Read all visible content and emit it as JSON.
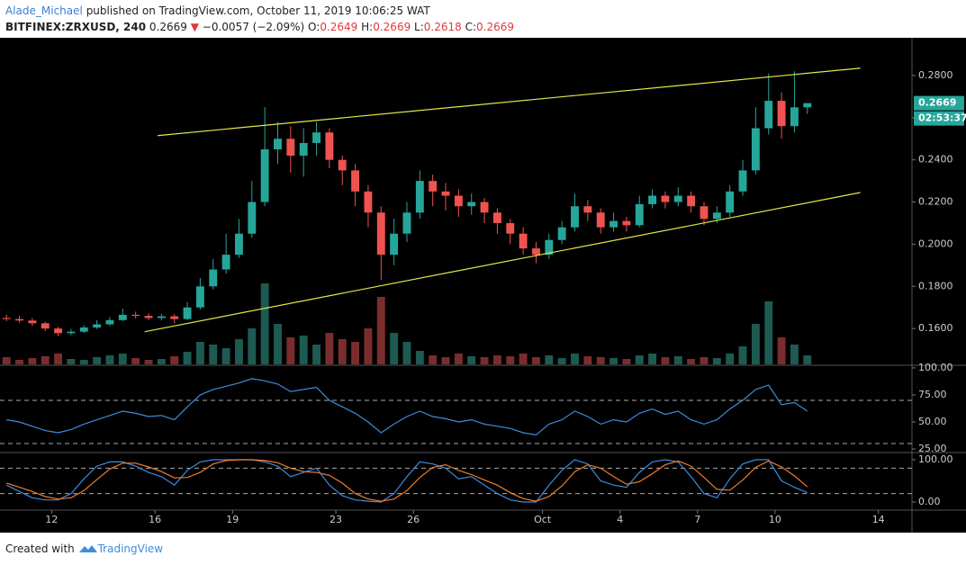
{
  "header": {
    "author": "Alade_Michael",
    "published": "published on TradingView.com, October 11, 2019 10:06:25 WAT",
    "symbol": "BITFINEX:ZRXUSD, 240",
    "last": "0.2669",
    "arrow": "▼",
    "change": "−0.0057 (−2.09%)",
    "ohlc": [
      {
        "label": "O:",
        "value": "0.2649"
      },
      {
        "label": "H:",
        "value": "0.2669"
      },
      {
        "label": "L:",
        "value": "0.2618"
      },
      {
        "label": "C:",
        "value": "0.2669"
      }
    ]
  },
  "footer": {
    "text": "Created with",
    "brand": "TradingView"
  },
  "chart_data": [
    {
      "type": "candlestick",
      "x": [
        10.25,
        10.75,
        11.25,
        11.75,
        12.25,
        12.75,
        13.25,
        13.75,
        14.25,
        14.75,
        15.25,
        15.75,
        16.25,
        16.75,
        17.25,
        17.75,
        18.25,
        18.75,
        19.25,
        19.75,
        20.25,
        20.75,
        21.25,
        21.75,
        22.25,
        22.75,
        23.25,
        23.75,
        24.25,
        24.75,
        25.25,
        25.75,
        26.25,
        26.75,
        27.25,
        27.75,
        28.25,
        28.75,
        29.25,
        29.75,
        30.25,
        30.75,
        31.25,
        31.75,
        32.25,
        32.75,
        33.25,
        33.75,
        34.25,
        34.75,
        35.25,
        35.75,
        36.25,
        36.75,
        37.25,
        37.75,
        38.25,
        38.75,
        39.25,
        39.75,
        40.25,
        40.75,
        41.25
      ],
      "open": [
        0.165,
        0.1645,
        0.1638,
        0.1625,
        0.16,
        0.1578,
        0.1585,
        0.1605,
        0.162,
        0.164,
        0.1665,
        0.166,
        0.165,
        0.1658,
        0.1645,
        0.17,
        0.18,
        0.188,
        0.195,
        0.205,
        0.22,
        0.245,
        0.25,
        0.242,
        0.248,
        0.253,
        0.24,
        0.235,
        0.225,
        0.215,
        0.195,
        0.205,
        0.215,
        0.23,
        0.225,
        0.223,
        0.218,
        0.22,
        0.215,
        0.21,
        0.205,
        0.198,
        0.195,
        0.202,
        0.208,
        0.218,
        0.215,
        0.208,
        0.211,
        0.209,
        0.219,
        0.223,
        0.22,
        0.223,
        0.218,
        0.212,
        0.215,
        0.225,
        0.235,
        0.255,
        0.268,
        0.256,
        0.2649
      ],
      "high": [
        0.1665,
        0.166,
        0.165,
        0.1632,
        0.1608,
        0.1598,
        0.1615,
        0.164,
        0.1655,
        0.1695,
        0.168,
        0.1672,
        0.167,
        0.1668,
        0.1725,
        0.184,
        0.193,
        0.205,
        0.212,
        0.23,
        0.265,
        0.258,
        0.256,
        0.255,
        0.258,
        0.255,
        0.242,
        0.238,
        0.228,
        0.218,
        0.212,
        0.22,
        0.235,
        0.233,
        0.229,
        0.226,
        0.224,
        0.222,
        0.217,
        0.212,
        0.208,
        0.201,
        0.205,
        0.211,
        0.224,
        0.221,
        0.217,
        0.215,
        0.213,
        0.223,
        0.226,
        0.225,
        0.227,
        0.225,
        0.22,
        0.218,
        0.228,
        0.24,
        0.265,
        0.281,
        0.272,
        0.282,
        0.2669
      ],
      "low": [
        0.1635,
        0.1628,
        0.1612,
        0.1588,
        0.1565,
        0.1568,
        0.1578,
        0.1598,
        0.1612,
        0.1635,
        0.1648,
        0.164,
        0.1638,
        0.1625,
        0.164,
        0.169,
        0.1785,
        0.186,
        0.1935,
        0.203,
        0.218,
        0.238,
        0.234,
        0.232,
        0.242,
        0.236,
        0.228,
        0.218,
        0.208,
        0.183,
        0.19,
        0.201,
        0.212,
        0.218,
        0.216,
        0.213,
        0.214,
        0.21,
        0.205,
        0.2,
        0.195,
        0.191,
        0.193,
        0.2,
        0.206,
        0.211,
        0.205,
        0.206,
        0.206,
        0.208,
        0.217,
        0.217,
        0.218,
        0.215,
        0.209,
        0.21,
        0.213,
        0.223,
        0.233,
        0.252,
        0.25,
        0.253,
        0.2618
      ],
      "close": [
        0.1645,
        0.1638,
        0.1625,
        0.16,
        0.1578,
        0.1585,
        0.1605,
        0.162,
        0.164,
        0.1665,
        0.166,
        0.165,
        0.1658,
        0.1645,
        0.17,
        0.18,
        0.188,
        0.195,
        0.205,
        0.22,
        0.245,
        0.25,
        0.242,
        0.248,
        0.253,
        0.24,
        0.235,
        0.225,
        0.215,
        0.195,
        0.205,
        0.215,
        0.23,
        0.225,
        0.223,
        0.218,
        0.22,
        0.215,
        0.21,
        0.205,
        0.198,
        0.195,
        0.202,
        0.208,
        0.218,
        0.215,
        0.208,
        0.211,
        0.209,
        0.219,
        0.223,
        0.22,
        0.223,
        0.218,
        0.212,
        0.215,
        0.225,
        0.235,
        0.255,
        0.268,
        0.256,
        0.2649,
        0.2669
      ],
      "volume": [
        8,
        5,
        7,
        9,
        12,
        6,
        5,
        8,
        10,
        12,
        7,
        5,
        6,
        9,
        14,
        25,
        22,
        18,
        28,
        40,
        90,
        45,
        30,
        32,
        22,
        35,
        28,
        25,
        40,
        75,
        35,
        25,
        15,
        10,
        8,
        12,
        9,
        8,
        10,
        9,
        12,
        8,
        10,
        7,
        12,
        9,
        8,
        7,
        6,
        10,
        12,
        8,
        9,
        6,
        8,
        7,
        12,
        20,
        45,
        70,
        30,
        22,
        10
      ],
      "up_color": "#26a69a",
      "down_color": "#ef5350",
      "up_volume_color": "#1d5b52",
      "down_volume_color": "#7b2d2d",
      "trendlines": [
        {
          "x": [
            16.1,
            43.3
          ],
          "y": [
            0.2515,
            0.2835
          ]
        },
        {
          "x": [
            15.6,
            43.3
          ],
          "y": [
            0.1585,
            0.2245
          ]
        }
      ],
      "trendline_color": "#e6e64a",
      "last_price": {
        "value": 0.2669,
        "label": "0.2669"
      },
      "countdown": "02:53:37",
      "xlim": [
        10,
        45.3
      ],
      "xticks": [
        12,
        16,
        19,
        23,
        26,
        {
          "value": 31,
          "label": "Oct"
        },
        {
          "value": 34,
          "label": "4"
        },
        {
          "value": 37,
          "label": "7"
        },
        {
          "value": 40,
          "label": "10"
        },
        {
          "value": 44,
          "label": "14"
        }
      ],
      "ylim": [
        0.143,
        0.2979
      ],
      "yticks": [
        {
          "value": 0.16,
          "label": "0.1600"
        },
        {
          "value": 0.18,
          "label": "0.1800"
        },
        {
          "value": 0.2,
          "label": "0.2000"
        },
        {
          "value": 0.22,
          "label": "0.2200"
        },
        {
          "value": 0.24,
          "label": "0.2400"
        },
        {
          "value": 0.26,
          "label": "0.2600"
        },
        {
          "value": 0.28,
          "label": "0.2800"
        }
      ]
    },
    {
      "type": "line",
      "series": [
        {
          "color": "#3d8be0",
          "values": [
            52,
            50,
            46,
            42,
            40,
            43,
            48,
            52,
            56,
            60,
            58,
            55,
            56,
            52,
            64,
            75,
            80,
            83,
            86,
            90,
            88,
            85,
            78,
            80,
            82,
            70,
            64,
            58,
            50,
            40,
            48,
            55,
            60,
            55,
            53,
            50,
            52,
            48,
            46,
            44,
            40,
            38,
            48,
            52,
            60,
            55,
            48,
            52,
            50,
            58,
            62,
            57,
            60,
            52,
            48,
            52,
            62,
            70,
            80,
            84,
            66,
            68,
            60
          ]
        }
      ],
      "bands": [
        30,
        70
      ],
      "ylim": [
        22.5,
        101.6
      ],
      "yticks": [
        {
          "value": 25,
          "label": "25.00"
        },
        {
          "value": 50,
          "label": "50.00"
        },
        {
          "value": 75,
          "label": "75.00"
        },
        {
          "value": 100,
          "label": "100.00"
        }
      ]
    },
    {
      "type": "line",
      "series": [
        {
          "color": "#3d8be0",
          "values": [
            40,
            25,
            10,
            5,
            5,
            20,
            55,
            85,
            95,
            95,
            85,
            70,
            60,
            40,
            75,
            95,
            100,
            100,
            100,
            100,
            95,
            85,
            60,
            70,
            80,
            40,
            15,
            5,
            2,
            0,
            20,
            60,
            95,
            90,
            80,
            55,
            60,
            40,
            20,
            5,
            0,
            0,
            40,
            75,
            100,
            90,
            50,
            40,
            35,
            70,
            95,
            100,
            95,
            60,
            20,
            10,
            55,
            90,
            100,
            100,
            50,
            35,
            22
          ]
        },
        {
          "color": "#f07c2a",
          "values": [
            45,
            35,
            25,
            13,
            7,
            10,
            27,
            53,
            78,
            92,
            92,
            83,
            72,
            57,
            58,
            70,
            90,
            98,
            100,
            100,
            98,
            93,
            80,
            72,
            70,
            63,
            45,
            20,
            7,
            2,
            7,
            27,
            58,
            82,
            88,
            75,
            65,
            52,
            40,
            22,
            8,
            2,
            13,
            38,
            72,
            88,
            80,
            60,
            42,
            48,
            67,
            88,
            97,
            85,
            58,
            30,
            28,
            52,
            82,
            97,
            83,
            62,
            36
          ]
        }
      ],
      "bands": [
        20,
        80
      ],
      "ylim": [
        -17,
        114.9
      ],
      "yticks": [
        {
          "value": 0,
          "label": "0.00"
        },
        {
          "value": 100,
          "label": "100.00"
        }
      ]
    }
  ]
}
